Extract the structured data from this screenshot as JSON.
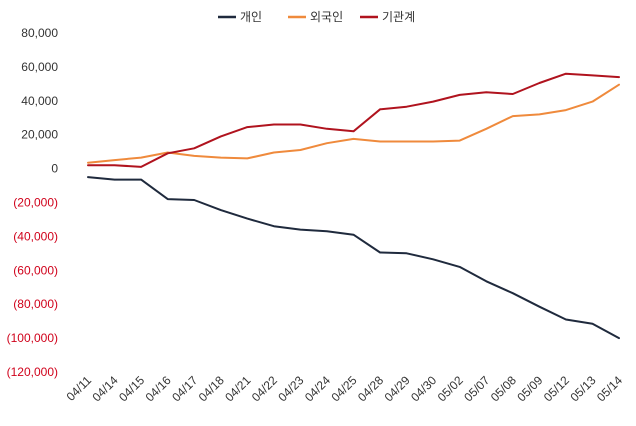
{
  "chart_data": {
    "type": "line",
    "categories": [
      "04/11",
      "04/14",
      "04/15",
      "04/16",
      "04/17",
      "04/18",
      "04/21",
      "04/22",
      "04/23",
      "04/24",
      "04/25",
      "04/28",
      "04/29",
      "04/30",
      "05/02",
      "05/07",
      "05/08",
      "05/09",
      "05/12",
      "05/13",
      "05/14"
    ],
    "series": [
      {
        "name": "개인",
        "color": "#1f2a3d",
        "values": [
          -5000,
          -6500,
          -6500,
          -18000,
          -18500,
          -24500,
          -29500,
          -34000,
          -36000,
          -37000,
          -39000,
          -49500,
          -50000,
          -53500,
          -58000,
          -66500,
          -73500,
          -81500,
          -89000,
          -91500,
          -100000
        ]
      },
      {
        "name": "외국인",
        "color": "#ef8a3c",
        "values": [
          3500,
          5000,
          6500,
          9500,
          7500,
          6500,
          6000,
          9500,
          11000,
          15000,
          17500,
          16000,
          16000,
          16000,
          16500,
          23500,
          31000,
          32000,
          34500,
          39500,
          49500
        ]
      },
      {
        "name": "기관계",
        "color": "#b0131e",
        "values": [
          2000,
          2000,
          1000,
          9000,
          12000,
          19000,
          24500,
          26000,
          26000,
          23500,
          22000,
          35000,
          36500,
          39500,
          43500,
          45000,
          44000,
          50500,
          56000,
          55000,
          54000
        ]
      }
    ],
    "ylim": [
      -120000,
      80000
    ],
    "y_ticks": [
      80000,
      60000,
      40000,
      20000,
      0,
      -20000,
      -40000,
      -60000,
      -80000,
      -100000,
      -120000
    ],
    "y_tick_labels": [
      "80,000",
      "60,000",
      "40,000",
      "20,000",
      "0",
      "(20,000)",
      "(40,000)",
      "(60,000)",
      "(80,000)",
      "(100,000)",
      "(120,000)"
    ],
    "negative_label_color": "#d0021b",
    "positive_label_color": "#333333",
    "grid": false,
    "legend_position": "top-center"
  }
}
